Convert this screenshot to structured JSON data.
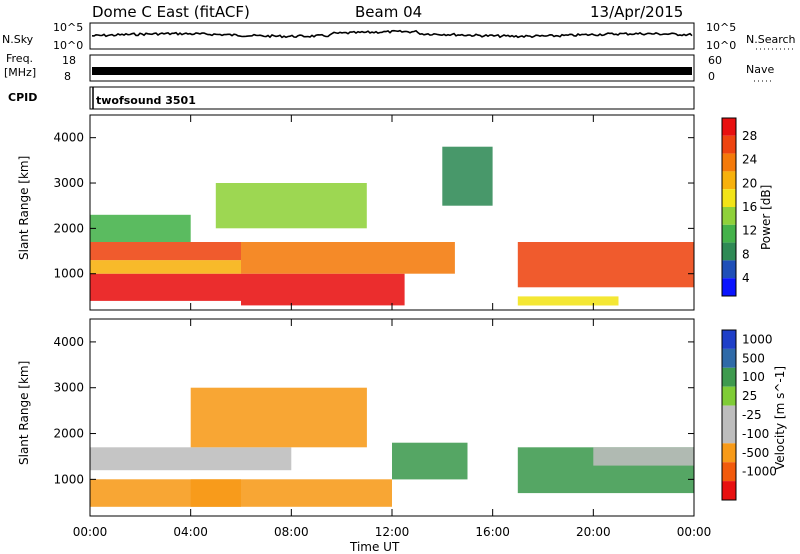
{
  "header": {
    "title": "Dome C East (fitACF)",
    "beam": "Beam 04",
    "date": "13/Apr/2015"
  },
  "noise_panel": {
    "left_label": "N.Sky",
    "left_ticks": [
      "10^5",
      "10^0"
    ],
    "right_label": "N.Search",
    "right_ticks": [
      "10^5",
      "10^0"
    ]
  },
  "freq_panel": {
    "left_label_top": "Freq.",
    "left_label_bottom": "[MHz]",
    "left_ticks": [
      "18",
      "8"
    ],
    "right_label": "Nave",
    "right_ticks": [
      "60",
      "0"
    ]
  },
  "cpid_panel": {
    "label": "CPID",
    "value": "twofsound 3501"
  },
  "colors": {
    "power_scale": [
      "#0a14ff",
      "#1f4fb8",
      "#2f8a55",
      "#44b24a",
      "#8fd13a",
      "#f2e418",
      "#f7b10c",
      "#f47a0a",
      "#ee4410",
      "#e81010"
    ],
    "velocity_scale": [
      "#e81010",
      "#f25a0c",
      "#f79a18",
      "#bdbdbd",
      "#bdbdbd",
      "#7fcc36",
      "#3e9a4e",
      "#2f6aa8",
      "#1f3fc8"
    ]
  },
  "chart_data": [
    {
      "type": "heatmap",
      "title": "",
      "xlabel": "",
      "ylabel": "Slant Range [km]",
      "x_ticks": [
        "00:00",
        "04:00",
        "08:00",
        "12:00",
        "16:00",
        "20:00",
        "00:00"
      ],
      "xlim_hours": [
        0,
        24
      ],
      "ylim": [
        200,
        4500
      ],
      "y_ticks": [
        1000,
        2000,
        3000,
        4000
      ],
      "colorbar": {
        "label": "Power [dB]",
        "ticks": [
          "28",
          "24",
          "20",
          "16",
          "12",
          "8",
          "4"
        ],
        "range": [
          0,
          30
        ]
      },
      "regions": [
        {
          "start_hour": 0.0,
          "end_hour": 6.0,
          "range_km": [
            400,
            1000
          ],
          "value_db": 28
        },
        {
          "start_hour": 0.0,
          "end_hour": 6.0,
          "range_km": [
            1000,
            1300
          ],
          "value_db": 20
        },
        {
          "start_hour": 0.0,
          "end_hour": 6.0,
          "range_km": [
            1300,
            1700
          ],
          "value_db": 26
        },
        {
          "start_hour": 0.0,
          "end_hour": 4.0,
          "range_km": [
            1700,
            2300
          ],
          "value_db": 10
        },
        {
          "start_hour": 6.0,
          "end_hour": 12.5,
          "range_km": [
            300,
            1000
          ],
          "value_db": 29
        },
        {
          "start_hour": 6.0,
          "end_hour": 14.5,
          "range_km": [
            1000,
            1700
          ],
          "value_db": 22
        },
        {
          "start_hour": 5.0,
          "end_hour": 11.0,
          "range_km": [
            2000,
            3000
          ],
          "value_db": 12
        },
        {
          "start_hour": 14.0,
          "end_hour": 16.0,
          "range_km": [
            2500,
            3800
          ],
          "value_db": 8
        },
        {
          "start_hour": 17.0,
          "end_hour": 24.0,
          "range_km": [
            700,
            1700
          ],
          "value_db": 25
        },
        {
          "start_hour": 17.0,
          "end_hour": 21.0,
          "range_km": [
            300,
            500
          ],
          "value_db": 16
        }
      ]
    },
    {
      "type": "heatmap",
      "title": "",
      "xlabel": "Time UT",
      "ylabel": "Slant Range [km]",
      "x_ticks": [
        "00:00",
        "04:00",
        "08:00",
        "12:00",
        "16:00",
        "20:00",
        "00:00"
      ],
      "xlim_hours": [
        0,
        24
      ],
      "ylim": [
        200,
        4500
      ],
      "y_ticks": [
        1000,
        2000,
        3000,
        4000
      ],
      "colorbar": {
        "label": "Velocity [m s^-1]",
        "ticks": [
          "1000",
          "500",
          "100",
          "25",
          "-25",
          "-100",
          "-500",
          "-1000"
        ],
        "range": [
          -1000,
          1000
        ]
      },
      "regions": [
        {
          "start_hour": 0.0,
          "end_hour": 6.0,
          "range_km": [
            400,
            1000
          ],
          "value_ms": -200
        },
        {
          "start_hour": 0.0,
          "end_hour": 8.0,
          "range_km": [
            1200,
            1700
          ],
          "value_ms": 0
        },
        {
          "start_hour": 4.0,
          "end_hour": 12.0,
          "range_km": [
            400,
            1000
          ],
          "value_ms": -400
        },
        {
          "start_hour": 4.0,
          "end_hour": 11.0,
          "range_km": [
            1700,
            3000
          ],
          "value_ms": -200
        },
        {
          "start_hour": 12.0,
          "end_hour": 15.0,
          "range_km": [
            1000,
            1800
          ],
          "value_ms": 200
        },
        {
          "start_hour": 17.0,
          "end_hour": 24.0,
          "range_km": [
            700,
            1700
          ],
          "value_ms": 150
        },
        {
          "start_hour": 20.0,
          "end_hour": 24.0,
          "range_km": [
            1300,
            1700
          ],
          "value_ms": 0
        }
      ]
    }
  ]
}
